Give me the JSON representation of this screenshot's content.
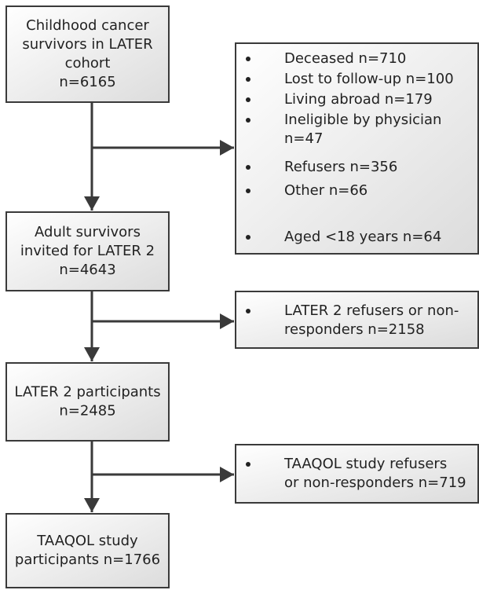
{
  "nodes": [
    {
      "lines": [
        "Childhood cancer",
        "survivors in LATER",
        "cohort",
        "n=6165"
      ]
    },
    {
      "lines": [
        "Adult survivors",
        "invited for LATER 2",
        "n=4643"
      ]
    },
    {
      "lines": [
        "LATER 2 participants",
        "n=2485"
      ]
    },
    {
      "lines": [
        "TAAQOL study",
        "participants n=1766"
      ]
    }
  ],
  "exclusions": [
    {
      "items": [
        {
          "lines": [
            "Deceased n=710"
          ]
        },
        {
          "lines": [
            "Lost to follow-up n=100"
          ]
        },
        {
          "lines": [
            "Living abroad n=179"
          ]
        },
        {
          "lines": [
            "Ineligible by physician",
            "n=47"
          ]
        },
        {
          "lines": [
            "Refusers n=356"
          ]
        },
        {
          "lines": [
            "Other n=66"
          ]
        },
        {
          "lines": [
            "Aged <18 years n=64"
          ]
        }
      ]
    },
    {
      "items": [
        {
          "lines": [
            "LATER 2 refusers or non-",
            "responders n=2158"
          ]
        }
      ]
    },
    {
      "items": [
        {
          "lines": [
            "TAAQOL study refusers",
            "or non-responders n=719"
          ]
        }
      ]
    }
  ]
}
